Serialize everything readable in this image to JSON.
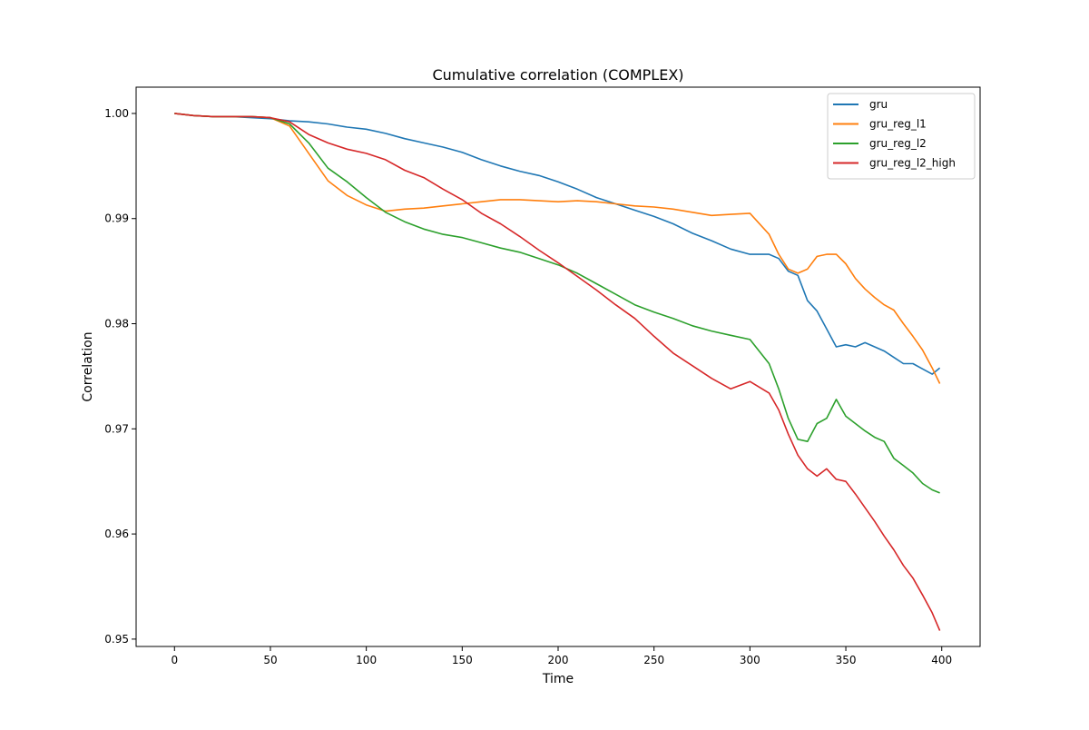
{
  "chart_data": {
    "type": "line",
    "title": "Cumulative correlation (COMPLEX)",
    "xlabel": "Time",
    "ylabel": "Correlation",
    "xlim": [
      -20,
      420
    ],
    "ylim": [
      0.9493,
      1.0025
    ],
    "xticks": [
      0,
      50,
      100,
      150,
      200,
      250,
      300,
      350,
      400
    ],
    "yticks": [
      0.95,
      0.96,
      0.97,
      0.98,
      0.99,
      1.0
    ],
    "xtick_labels": [
      "0",
      "50",
      "100",
      "150",
      "200",
      "250",
      "300",
      "350",
      "400"
    ],
    "ytick_labels": [
      "0.95",
      "0.96",
      "0.97",
      "0.98",
      "0.99",
      "1.00"
    ],
    "grid": false,
    "legend_position": "top-right",
    "x": [
      0,
      10,
      20,
      30,
      40,
      50,
      60,
      70,
      80,
      90,
      100,
      110,
      120,
      130,
      140,
      150,
      160,
      170,
      180,
      190,
      200,
      210,
      220,
      230,
      240,
      250,
      260,
      270,
      280,
      290,
      300,
      310,
      315,
      320,
      325,
      330,
      335,
      340,
      345,
      350,
      355,
      360,
      365,
      370,
      375,
      380,
      385,
      390,
      395,
      399
    ],
    "series": [
      {
        "name": "gru",
        "color": "#1f77b4",
        "values": [
          1.0,
          0.9998,
          0.9997,
          0.9997,
          0.9996,
          0.9995,
          0.9993,
          0.9992,
          0.999,
          0.9987,
          0.9985,
          0.9981,
          0.9976,
          0.9972,
          0.9968,
          0.9963,
          0.9956,
          0.995,
          0.9945,
          0.9941,
          0.9935,
          0.9928,
          0.992,
          0.9914,
          0.9908,
          0.9902,
          0.9895,
          0.9886,
          0.9879,
          0.9871,
          0.9866,
          0.9866,
          0.9862,
          0.985,
          0.9846,
          0.9822,
          0.9812,
          0.9795,
          0.9778,
          0.978,
          0.9778,
          0.9782,
          0.9778,
          0.9774,
          0.9768,
          0.9762,
          0.9762,
          0.9757,
          0.9752,
          0.9758
        ]
      },
      {
        "name": "gru_reg_l1",
        "color": "#ff7f0e",
        "values": [
          1.0,
          0.9998,
          0.9997,
          0.9997,
          0.9997,
          0.9996,
          0.9988,
          0.9962,
          0.9936,
          0.9922,
          0.9913,
          0.9907,
          0.9909,
          0.991,
          0.9912,
          0.9914,
          0.9916,
          0.9918,
          0.9918,
          0.9917,
          0.9916,
          0.9917,
          0.9916,
          0.9914,
          0.9912,
          0.9911,
          0.9909,
          0.9906,
          0.9903,
          0.9904,
          0.9905,
          0.9885,
          0.9866,
          0.9852,
          0.9848,
          0.9852,
          0.9864,
          0.9866,
          0.9866,
          0.9857,
          0.9843,
          0.9833,
          0.9825,
          0.9818,
          0.9813,
          0.98,
          0.9788,
          0.9775,
          0.9758,
          0.9743
        ]
      },
      {
        "name": "gru_reg_l2",
        "color": "#2ca02c",
        "values": [
          1.0,
          0.9998,
          0.9997,
          0.9997,
          0.9997,
          0.9996,
          0.999,
          0.9972,
          0.9948,
          0.9935,
          0.992,
          0.9906,
          0.9897,
          0.989,
          0.9885,
          0.9882,
          0.9877,
          0.9872,
          0.9868,
          0.9862,
          0.9856,
          0.9848,
          0.9838,
          0.9828,
          0.9818,
          0.9811,
          0.9805,
          0.9798,
          0.9793,
          0.9789,
          0.9785,
          0.9762,
          0.9738,
          0.971,
          0.969,
          0.9688,
          0.9705,
          0.971,
          0.9728,
          0.9712,
          0.9705,
          0.9698,
          0.9692,
          0.9688,
          0.9672,
          0.9665,
          0.9658,
          0.9648,
          0.9642,
          0.9639
        ]
      },
      {
        "name": "gru_reg_l2_high",
        "color": "#d62728",
        "values": [
          1.0,
          0.9998,
          0.9997,
          0.9997,
          0.9997,
          0.9996,
          0.9992,
          0.998,
          0.9972,
          0.9966,
          0.9962,
          0.9956,
          0.9946,
          0.9939,
          0.9928,
          0.9918,
          0.9905,
          0.9895,
          0.9883,
          0.987,
          0.9858,
          0.9845,
          0.9832,
          0.9818,
          0.9805,
          0.9788,
          0.9772,
          0.976,
          0.9748,
          0.9738,
          0.9745,
          0.9734,
          0.9718,
          0.9695,
          0.9675,
          0.9662,
          0.9655,
          0.9662,
          0.9652,
          0.965,
          0.9638,
          0.9625,
          0.9612,
          0.9598,
          0.9585,
          0.957,
          0.9558,
          0.9542,
          0.9525,
          0.9508
        ]
      }
    ]
  }
}
